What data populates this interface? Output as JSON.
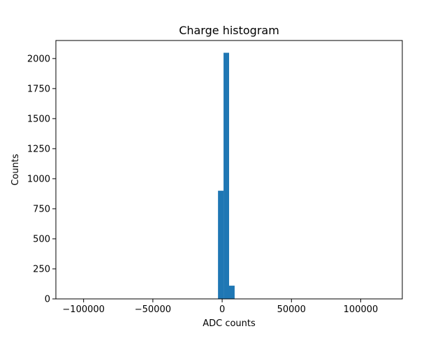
{
  "chart_data": {
    "type": "bar",
    "subtype": "histogram",
    "title": "Charge histogram",
    "xlabel": "ADC counts",
    "ylabel": "Counts",
    "xlim": [
      -120000,
      130000
    ],
    "ylim": [
      0,
      2150
    ],
    "bar_color": "#1f77b4",
    "grid": false,
    "legend": "none",
    "x_ticks": [
      {
        "value": -100000,
        "label": "−100000"
      },
      {
        "value": -50000,
        "label": "−50000"
      },
      {
        "value": 0,
        "label": "0"
      },
      {
        "value": 50000,
        "label": "50000"
      },
      {
        "value": 100000,
        "label": "100000"
      }
    ],
    "y_ticks": [
      {
        "value": 0,
        "label": "0"
      },
      {
        "value": 250,
        "label": "250"
      },
      {
        "value": 500,
        "label": "500"
      },
      {
        "value": 750,
        "label": "750"
      },
      {
        "value": 1000,
        "label": "1000"
      },
      {
        "value": 1250,
        "label": "1250"
      },
      {
        "value": 1500,
        "label": "1500"
      },
      {
        "value": 1750,
        "label": "1750"
      },
      {
        "value": 2000,
        "label": "2000"
      },
      {
        "value": 2250,
        "label": ""
      }
    ],
    "bins": [
      {
        "x0": -3000,
        "x1": 1000,
        "count": 900
      },
      {
        "x0": 1000,
        "x1": 5000,
        "count": 2048
      },
      {
        "x0": 5000,
        "x1": 9000,
        "count": 110
      }
    ]
  }
}
